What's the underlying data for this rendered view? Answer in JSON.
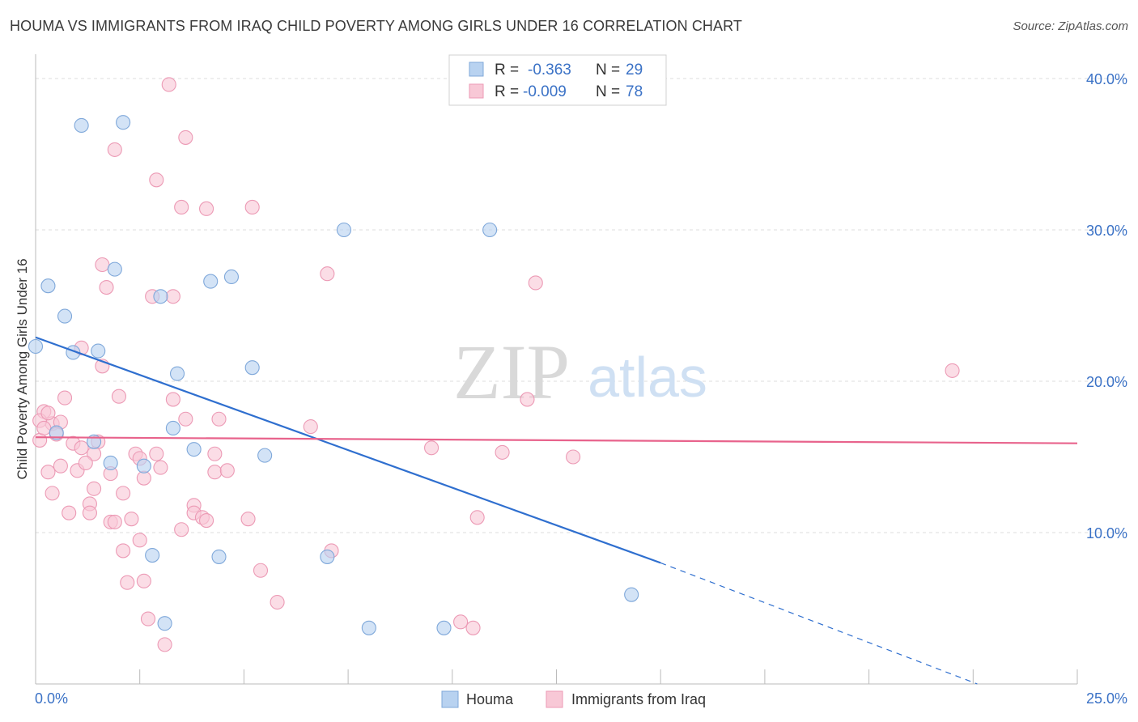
{
  "header": {
    "title": "HOUMA VS IMMIGRANTS FROM IRAQ CHILD POVERTY AMONG GIRLS UNDER 16 CORRELATION CHART",
    "source": "Source: ZipAtlas.com"
  },
  "colors": {
    "blue_point_fill": "#b8d2f0",
    "blue_point_stroke": "#7fa8da",
    "blue_line": "#2f6fcf",
    "pink_point_fill": "#f8c8d6",
    "pink_point_stroke": "#ec9ab5",
    "pink_line": "#e8638c",
    "axis_value_text": "#3b72c6",
    "grid": "#dcdcdc"
  },
  "legend_top": {
    "rows": [
      {
        "r_label": "R =",
        "r_value": "-0.363",
        "n_label": "N =",
        "n_value": "29",
        "series": "blue"
      },
      {
        "r_label": "R =",
        "r_value": "-0.009",
        "n_label": "N =",
        "n_value": "78",
        "series": "pink"
      }
    ]
  },
  "watermark": {
    "zip": "ZIP",
    "atlas": "atlas"
  },
  "chart_data": {
    "type": "scatter",
    "title": "HOUMA VS IMMIGRANTS FROM IRAQ CHILD POVERTY AMONG GIRLS UNDER 16 CORRELATION CHART",
    "xlabel": "",
    "ylabel": "Child Poverty Among Girls Under 16",
    "xlim": [
      0,
      25
    ],
    "ylim": [
      0,
      40
    ],
    "x_tick_labels": [
      {
        "value": 0,
        "label": "0.0%"
      },
      {
        "value": 25,
        "label": "25.0%"
      }
    ],
    "y_tick_labels": [
      {
        "value": 10,
        "label": "10.0%"
      },
      {
        "value": 20,
        "label": "20.0%"
      },
      {
        "value": 30,
        "label": "30.0%"
      },
      {
        "value": 40,
        "label": "40.0%"
      }
    ],
    "grid": true,
    "legend": "bottom",
    "series": [
      {
        "name": "Houma",
        "color": "#b8d2f0",
        "r": -0.363,
        "n": 29,
        "trend": {
          "x0": 0,
          "y0": 22.9,
          "x1_solid": 15.0,
          "y1_solid": 8.0,
          "x1_dash": 22.6,
          "y1_dash": 0
        },
        "points": [
          [
            0.0,
            22.3
          ],
          [
            1.1,
            36.9
          ],
          [
            2.1,
            37.1
          ],
          [
            0.3,
            26.3
          ],
          [
            0.7,
            24.3
          ],
          [
            1.9,
            27.4
          ],
          [
            0.9,
            21.9
          ],
          [
            1.5,
            22.0
          ],
          [
            3.0,
            25.6
          ],
          [
            4.2,
            26.6
          ],
          [
            4.7,
            26.9
          ],
          [
            7.4,
            30.0
          ],
          [
            10.9,
            30.0
          ],
          [
            3.4,
            20.5
          ],
          [
            5.2,
            20.9
          ],
          [
            0.5,
            16.6
          ],
          [
            1.4,
            16.0
          ],
          [
            3.3,
            16.9
          ],
          [
            3.8,
            15.5
          ],
          [
            1.8,
            14.6
          ],
          [
            2.6,
            14.4
          ],
          [
            5.5,
            15.1
          ],
          [
            2.8,
            8.5
          ],
          [
            4.4,
            8.4
          ],
          [
            7.0,
            8.4
          ],
          [
            14.3,
            5.9
          ],
          [
            3.1,
            4.0
          ],
          [
            8.0,
            3.7
          ],
          [
            9.8,
            3.7
          ]
        ]
      },
      {
        "name": "Immigrants from Iraq",
        "color": "#f8c8d6",
        "r": -0.009,
        "n": 78,
        "trend": {
          "x0": 0,
          "y0": 16.3,
          "x1": 25,
          "y1": 15.9
        },
        "points": [
          [
            3.2,
            39.6
          ],
          [
            1.9,
            35.3
          ],
          [
            3.6,
            36.1
          ],
          [
            2.9,
            33.3
          ],
          [
            3.5,
            31.5
          ],
          [
            4.1,
            31.4
          ],
          [
            5.2,
            31.5
          ],
          [
            1.6,
            27.7
          ],
          [
            7.0,
            27.1
          ],
          [
            12.0,
            26.5
          ],
          [
            1.7,
            26.2
          ],
          [
            2.8,
            25.6
          ],
          [
            3.3,
            25.6
          ],
          [
            1.1,
            22.2
          ],
          [
            1.6,
            21.0
          ],
          [
            22.0,
            20.7
          ],
          [
            0.7,
            18.9
          ],
          [
            2.0,
            19.0
          ],
          [
            3.3,
            18.8
          ],
          [
            11.8,
            18.8
          ],
          [
            0.2,
            18.0
          ],
          [
            0.4,
            17.2
          ],
          [
            0.6,
            17.3
          ],
          [
            3.6,
            17.5
          ],
          [
            4.4,
            17.5
          ],
          [
            6.6,
            17.0
          ],
          [
            0.1,
            16.1
          ],
          [
            0.9,
            15.9
          ],
          [
            1.5,
            16.0
          ],
          [
            1.1,
            15.6
          ],
          [
            9.5,
            15.6
          ],
          [
            11.2,
            15.3
          ],
          [
            12.9,
            15.0
          ],
          [
            1.4,
            15.2
          ],
          [
            2.4,
            15.2
          ],
          [
            2.9,
            15.2
          ],
          [
            4.3,
            15.2
          ],
          [
            2.5,
            14.9
          ],
          [
            0.3,
            14.0
          ],
          [
            0.6,
            14.4
          ],
          [
            1.0,
            14.1
          ],
          [
            1.2,
            14.6
          ],
          [
            1.8,
            13.9
          ],
          [
            3.0,
            14.3
          ],
          [
            4.3,
            14.0
          ],
          [
            4.6,
            14.1
          ],
          [
            2.6,
            13.6
          ],
          [
            1.4,
            12.9
          ],
          [
            0.4,
            12.6
          ],
          [
            2.1,
            12.6
          ],
          [
            1.3,
            11.9
          ],
          [
            3.8,
            11.8
          ],
          [
            0.8,
            11.3
          ],
          [
            1.3,
            11.3
          ],
          [
            3.8,
            11.3
          ],
          [
            4.0,
            11.0
          ],
          [
            2.3,
            10.9
          ],
          [
            5.1,
            10.9
          ],
          [
            10.6,
            11.0
          ],
          [
            1.8,
            10.7
          ],
          [
            1.9,
            10.7
          ],
          [
            4.1,
            10.8
          ],
          [
            3.5,
            10.2
          ],
          [
            2.5,
            9.5
          ],
          [
            2.1,
            8.8
          ],
          [
            7.1,
            8.8
          ],
          [
            5.4,
            7.5
          ],
          [
            2.2,
            6.7
          ],
          [
            2.6,
            6.8
          ],
          [
            5.8,
            5.4
          ],
          [
            2.7,
            4.3
          ],
          [
            10.2,
            4.1
          ],
          [
            10.5,
            3.7
          ],
          [
            3.1,
            2.6
          ],
          [
            0.1,
            17.4
          ],
          [
            0.2,
            16.9
          ],
          [
            0.5,
            16.5
          ],
          [
            0.3,
            17.9
          ]
        ]
      }
    ]
  }
}
